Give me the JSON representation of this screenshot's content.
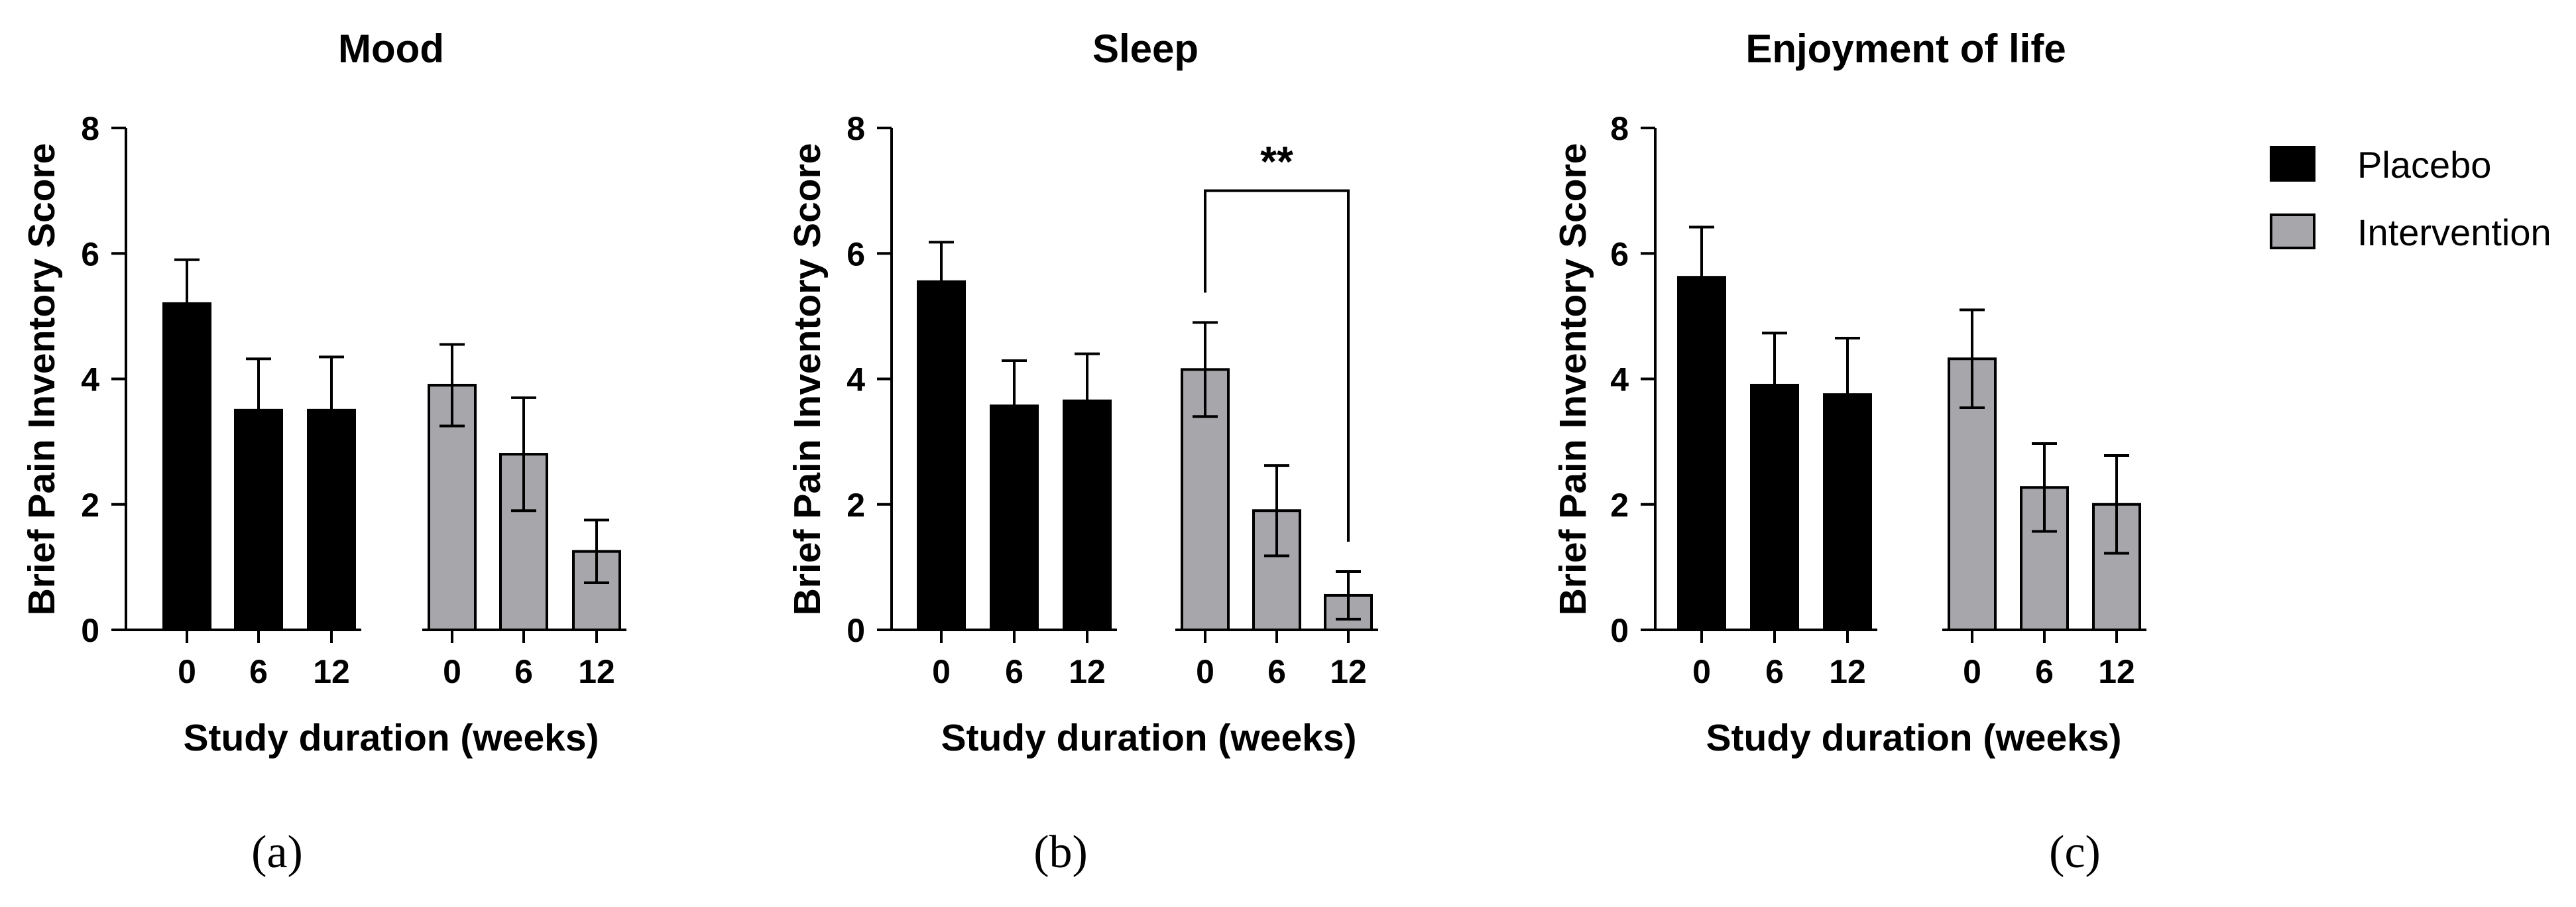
{
  "legend": {
    "items": [
      {
        "label": "Placebo",
        "color": "#000000"
      },
      {
        "label": "Intervention",
        "color": "#a6a6ab"
      }
    ]
  },
  "chart_data": [
    {
      "type": "bar",
      "panel_label": "(a)",
      "title": "Mood",
      "ylabel": "Brief Pain Inventory Score",
      "xlabel": "Study duration (weeks)",
      "ylim": [
        0,
        8
      ],
      "yticks": [
        "0",
        "2",
        "4",
        "6",
        "8"
      ],
      "groups": [
        {
          "name": "Placebo",
          "categories": [
            "0",
            "6",
            "12"
          ],
          "values": [
            5.2,
            3.5,
            3.5
          ],
          "errors": [
            0.7,
            0.82,
            0.85
          ]
        },
        {
          "name": "Intervention",
          "categories": [
            "0",
            "6",
            "12"
          ],
          "values": [
            3.9,
            2.8,
            1.25
          ],
          "errors": [
            0.65,
            0.9,
            0.5
          ]
        }
      ],
      "annotations": []
    },
    {
      "type": "bar",
      "panel_label": "(b)",
      "title": "Sleep",
      "ylabel": "Brief Pain Inventory Score",
      "xlabel": "Study duration (weeks)",
      "ylim": [
        0,
        8
      ],
      "yticks": [
        "0",
        "2",
        "4",
        "6",
        "8"
      ],
      "groups": [
        {
          "name": "Placebo",
          "categories": [
            "0",
            "6",
            "12"
          ],
          "values": [
            5.55,
            3.57,
            3.65
          ],
          "errors": [
            0.63,
            0.72,
            0.75
          ]
        },
        {
          "name": "Intervention",
          "categories": [
            "0",
            "6",
            "12"
          ],
          "values": [
            4.15,
            1.9,
            0.55
          ],
          "errors": [
            0.75,
            0.72,
            0.38
          ]
        }
      ],
      "annotations": [
        {
          "text": "**",
          "from": "Intervention 0",
          "to": "Intervention 12",
          "y": 7.0
        }
      ]
    },
    {
      "type": "bar",
      "panel_label": "(c)",
      "title": "Enjoyment of life",
      "ylabel": "Brief Pain Inventory Score",
      "xlabel": "Study duration (weeks)",
      "ylim": [
        0,
        8
      ],
      "yticks": [
        "0",
        "2",
        "4",
        "6",
        "8"
      ],
      "groups": [
        {
          "name": "Placebo",
          "categories": [
            "0",
            "6",
            "12"
          ],
          "values": [
            5.62,
            3.9,
            3.75
          ],
          "errors": [
            0.8,
            0.83,
            0.9
          ]
        },
        {
          "name": "Intervention",
          "categories": [
            "0",
            "6",
            "12"
          ],
          "values": [
            4.32,
            2.27,
            2.0
          ],
          "errors": [
            0.78,
            0.7,
            0.78
          ]
        }
      ],
      "annotations": []
    }
  ]
}
